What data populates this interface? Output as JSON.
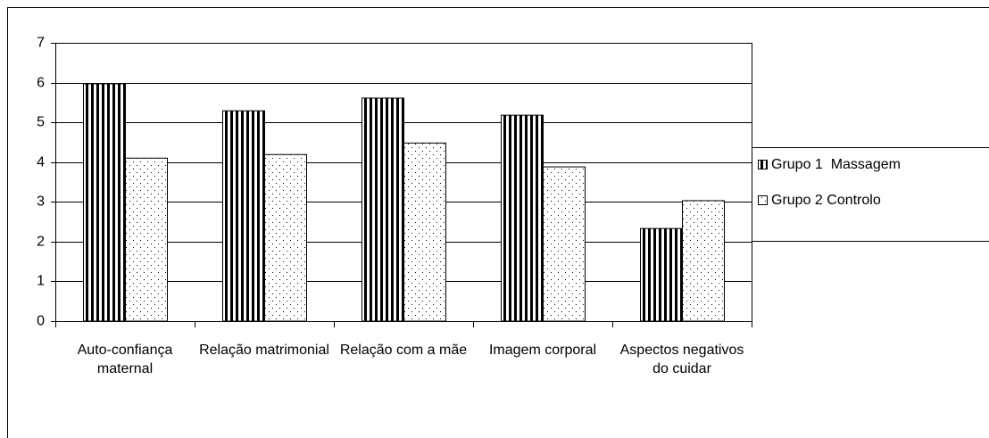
{
  "chart_data": {
    "type": "bar",
    "categories": [
      "Auto-confiança maternal",
      "Relação matrimonial",
      "Relação com a mãe",
      "Imagem corporal",
      "Aspectos negativos do cuidar"
    ],
    "series": [
      {
        "name": "Grupo 1  Massagem",
        "values": [
          5.97,
          5.29,
          5.61,
          5.18,
          2.33
        ]
      },
      {
        "name": "Grupo 2 Controlo",
        "values": [
          4.1,
          4.19,
          4.48,
          3.88,
          3.03
        ]
      }
    ],
    "ylim": [
      0,
      7
    ],
    "yticks": [
      0,
      1,
      2,
      3,
      4,
      5,
      6,
      7
    ],
    "grid": true
  }
}
